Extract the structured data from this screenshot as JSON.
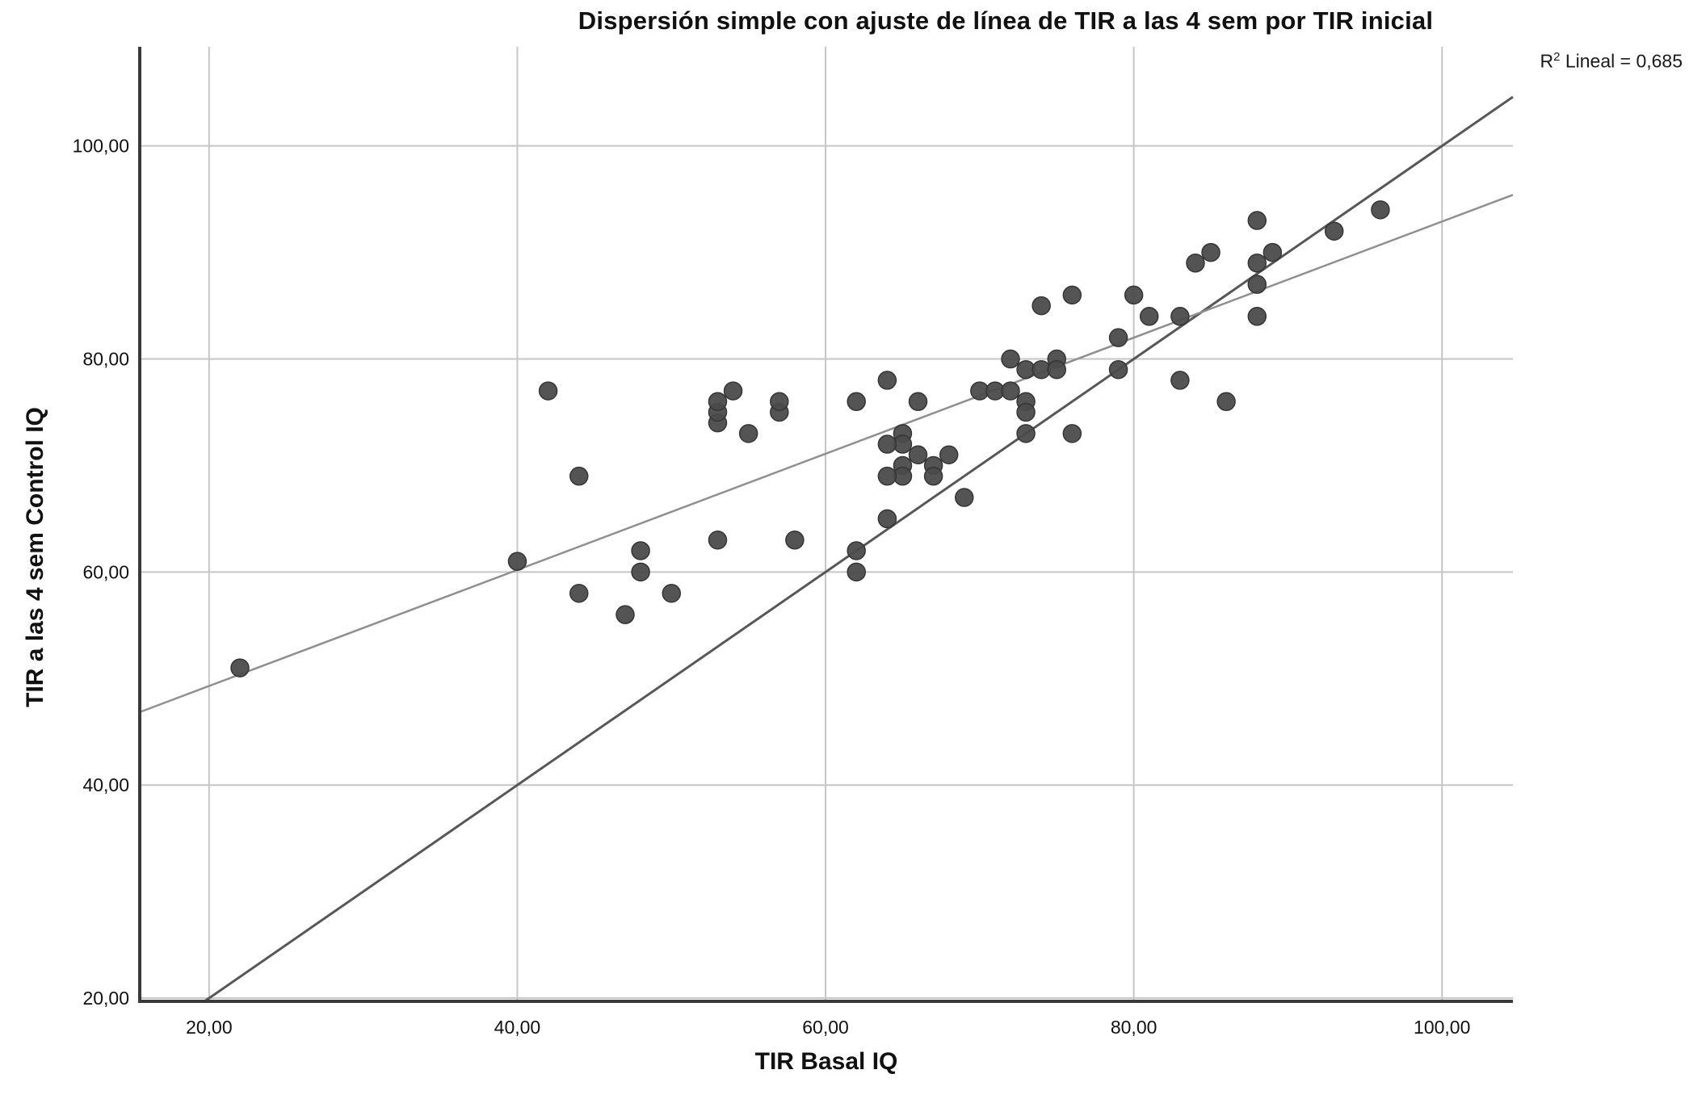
{
  "title": "Dispersión simple con ajuste de línea de TIR a las 4 sem por TIR inicial",
  "annotation": {
    "r2_base": "R",
    "r2_sup": "2",
    "r2_rest": " Lineal = 0,685"
  },
  "chart_data": {
    "type": "scatter",
    "title": "Dispersión simple con ajuste de línea de TIR a las 4 sem por TIR inicial",
    "xlabel": "TIR Basal IQ",
    "ylabel": "TIR a las 4 sem Control IQ",
    "x_ticks": [
      20,
      40,
      60,
      80,
      100
    ],
    "y_ticks": [
      20,
      40,
      60,
      80,
      100
    ],
    "x_tick_labels": [
      "20,00",
      "40,00",
      "60,00",
      "80,00",
      "100,00"
    ],
    "y_tick_labels": [
      "20,00",
      "40,00",
      "60,00",
      "80,00",
      "100,00"
    ],
    "xlim": [
      15.5,
      104.6
    ],
    "ylim": [
      19.7,
      109.3
    ],
    "grid": true,
    "legend": "none",
    "r2_lineal": "0,685",
    "points": [
      [
        22,
        51
      ],
      [
        40,
        61
      ],
      [
        42,
        77
      ],
      [
        44,
        69
      ],
      [
        44,
        58
      ],
      [
        47,
        56
      ],
      [
        48,
        60
      ],
      [
        48,
        62
      ],
      [
        50,
        58
      ],
      [
        53,
        63
      ],
      [
        58,
        63
      ],
      [
        53,
        74
      ],
      [
        53,
        75
      ],
      [
        53,
        76
      ],
      [
        54,
        77
      ],
      [
        55,
        73
      ],
      [
        57,
        75
      ],
      [
        57,
        76
      ],
      [
        62,
        76
      ],
      [
        64,
        78
      ],
      [
        62,
        60
      ],
      [
        62,
        62
      ],
      [
        64,
        65
      ],
      [
        69,
        67
      ],
      [
        65,
        73
      ],
      [
        65,
        72
      ],
      [
        64,
        72
      ],
      [
        66,
        71
      ],
      [
        65,
        70
      ],
      [
        67,
        70
      ],
      [
        67,
        69
      ],
      [
        65,
        69
      ],
      [
        64,
        69
      ],
      [
        68,
        71
      ],
      [
        66,
        76
      ],
      [
        70,
        77
      ],
      [
        71,
        77
      ],
      [
        72,
        77
      ],
      [
        72,
        80
      ],
      [
        73,
        79
      ],
      [
        74,
        79
      ],
      [
        75,
        80
      ],
      [
        75,
        79
      ],
      [
        73,
        76
      ],
      [
        73,
        75
      ],
      [
        73,
        73
      ],
      [
        76,
        73
      ],
      [
        74,
        85
      ],
      [
        76,
        86
      ],
      [
        80,
        86
      ],
      [
        81,
        84
      ],
      [
        83,
        84
      ],
      [
        79,
        82
      ],
      [
        79,
        79
      ],
      [
        83,
        78
      ],
      [
        86,
        76
      ],
      [
        84,
        89
      ],
      [
        85,
        90
      ],
      [
        88,
        89
      ],
      [
        89,
        90
      ],
      [
        88,
        87
      ],
      [
        88,
        84
      ],
      [
        88,
        93
      ],
      [
        93,
        92
      ],
      [
        96,
        94
      ]
    ],
    "lines": [
      {
        "name": "identity-line",
        "slope": 1,
        "intercept": 0,
        "color": "#575757",
        "width": 3
      },
      {
        "name": "fit-line",
        "slope": 0.545,
        "intercept": 38.4,
        "color": "#8f8f8f",
        "width": 2.5
      }
    ],
    "point_color": "#4c4b4b",
    "point_edge_color": "#353535",
    "point_radius": 11,
    "grid_color": "#c6c6c6",
    "axis_color": "#3a3a3a",
    "tick_label_color": "#111111"
  }
}
